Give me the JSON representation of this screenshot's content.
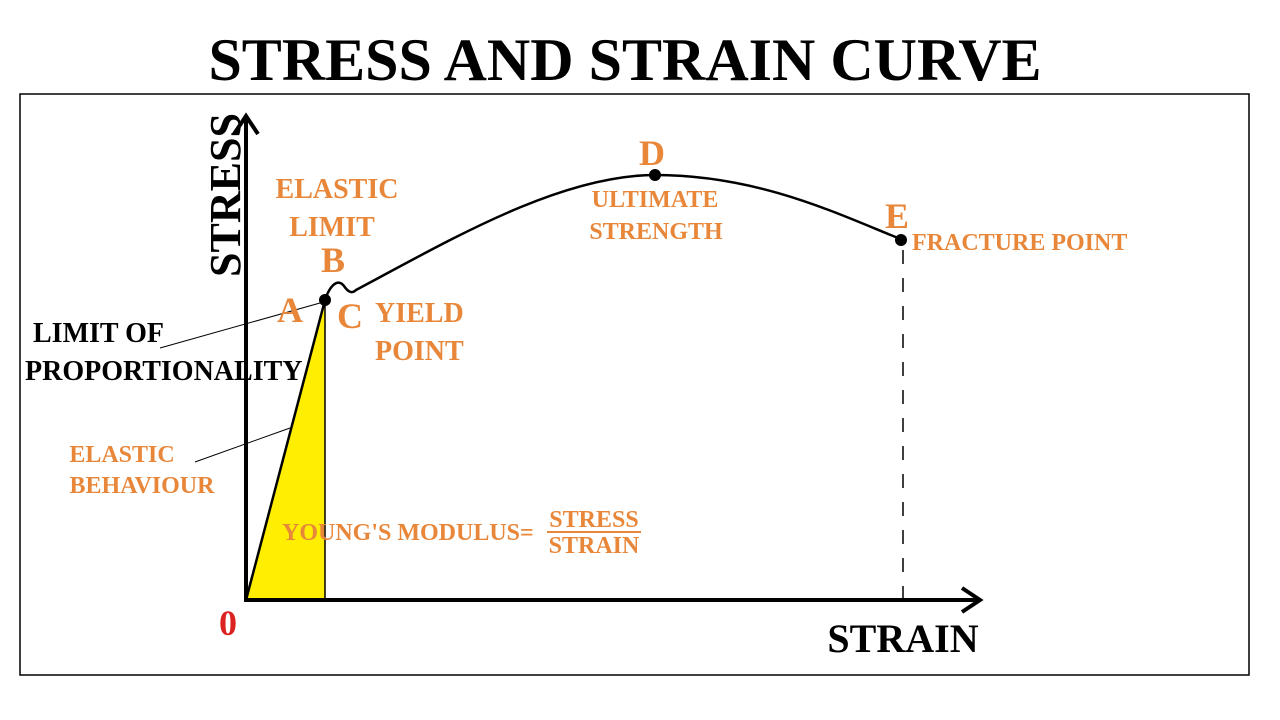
{
  "title": "STRESS AND STRAIN CURVE",
  "axes": {
    "y": "STRESS",
    "x": "STRAIN",
    "origin": "0"
  },
  "points": {
    "a": "A",
    "b": "B",
    "c": "C",
    "d": "D",
    "e": "E"
  },
  "annotations": {
    "elastic_limit": [
      "ELASTIC",
      "LIMIT"
    ],
    "yield_point": [
      "YIELD",
      "POINT"
    ],
    "ultimate_strength": [
      "ULTIMATE",
      "STRENGTH"
    ],
    "fracture_point": "FRACTURE POINT",
    "limit_of_proportionality": [
      "LIMIT OF",
      "PROPORTIONALITY"
    ],
    "elastic_behaviour": [
      "ELASTIC",
      "BEHAVIOUR"
    ],
    "youngs_modulus": {
      "label": "YOUNG'S MODULUS=",
      "numerator": "STRESS",
      "denominator": "STRAIN"
    }
  }
}
